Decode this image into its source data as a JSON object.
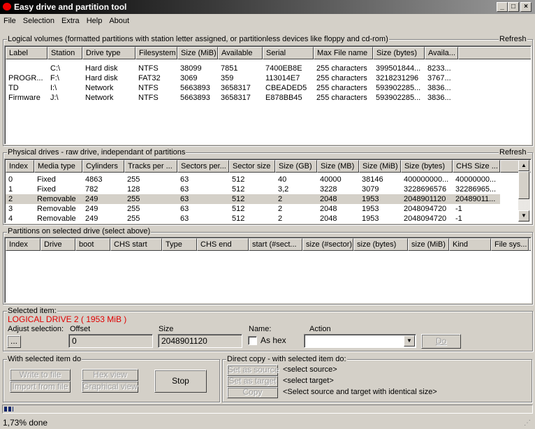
{
  "window": {
    "title": "Easy drive and partition tool",
    "min": "_",
    "max": "□",
    "close": "×"
  },
  "menu": [
    "File",
    "Selection",
    "Extra",
    "Help",
    "About"
  ],
  "logical": {
    "title": "Logical volumes (formatted partitions with station letter assigned, or partitionless devices like floppy and cd-rom)",
    "refresh": "Refresh",
    "columns": [
      "Label",
      "Station",
      "Drive type",
      "Filesystem",
      "Size (MiB)",
      "Available",
      "Serial",
      "Max File name",
      "Size (bytes)",
      "Availa..."
    ],
    "rows": [
      [
        "",
        "C:\\",
        "Hard disk",
        "NTFS",
        "38099",
        "7851",
        "7400EB8E",
        "255 characters",
        "399501844...",
        "8233..."
      ],
      [
        "PROGR...",
        "F:\\",
        "Hard disk",
        "FAT32",
        "3069",
        "359",
        "113014E7",
        "255 characters",
        "3218231296",
        "3767..."
      ],
      [
        "TD",
        "I:\\",
        "Network",
        "NTFS",
        "5663893",
        "3658317",
        "CBEADED5",
        "255 characters",
        "593902285...",
        "3836..."
      ],
      [
        "Firmware",
        "J:\\",
        "Network",
        "NTFS",
        "5663893",
        "3658317",
        "E878BB45",
        "255 characters",
        "593902285...",
        "3836..."
      ]
    ]
  },
  "physical": {
    "title": "Physical drives - raw drive, independant of partitions",
    "refresh": "Refresh",
    "selected_row": 2,
    "columns": [
      "Index",
      "Media type",
      "Cylinders",
      "Tracks per ...",
      "Sectors per...",
      "Sector size",
      "Size (GB)",
      "Size (MB)",
      "Size (MiB)",
      "Size (bytes)",
      "CHS Size ..."
    ],
    "rows": [
      [
        "0",
        "Fixed",
        "4863",
        "255",
        "63",
        "512",
        "40",
        "40000",
        "38146",
        "400000000...",
        "40000000..."
      ],
      [
        "1",
        "Fixed",
        "782",
        "128",
        "63",
        "512",
        "3,2",
        "3228",
        "3079",
        "3228696576",
        "32286965..."
      ],
      [
        "2",
        "Removable",
        "249",
        "255",
        "63",
        "512",
        "2",
        "2048",
        "1953",
        "2048901120",
        "20489011..."
      ],
      [
        "3",
        "Removable",
        "249",
        "255",
        "63",
        "512",
        "2",
        "2048",
        "1953",
        "2048094720",
        "-1"
      ],
      [
        "4",
        "Removable",
        "249",
        "255",
        "63",
        "512",
        "2",
        "2048",
        "1953",
        "2048094720",
        "-1"
      ]
    ]
  },
  "partitions": {
    "title": "Partitions on selected drive (select above)",
    "columns": [
      "Index",
      "Drive",
      "boot",
      "CHS start",
      "Type",
      "CHS end",
      "start (#sect...",
      "size (#sector)",
      "size (bytes)",
      "size (MiB)",
      "Kind",
      "File sys..."
    ]
  },
  "selected": {
    "title": "Selected item:",
    "item": "LOGICAL DRIVE 2  ( 1953 MiB )",
    "item_color": "#e00000",
    "adjust_label": "Adjust selection:",
    "adjust_btn": "...",
    "offset_label": "Offset",
    "offset": "0",
    "size_label": "Size",
    "size": "2048901120",
    "name_label": "Name:",
    "as_hex": "As hex",
    "as_hex_checked": false,
    "action_label": "Action",
    "action_value": "",
    "do": "Do"
  },
  "with_item": {
    "title": "With selected item do",
    "write": "Write to file",
    "import": "Import from file",
    "hex": "Hex view",
    "graph": "Graphical view",
    "stop": "Stop"
  },
  "direct": {
    "title": "Direct copy - with selected item do:",
    "set_source": "Set as source",
    "set_target": "Set as target",
    "copy": "Copy",
    "source_text": "<select source>",
    "target_text": "<select target>",
    "copy_text": "<Select source and target with identical size>"
  },
  "progress": {
    "percent": 1.73,
    "color": "#0a246a"
  },
  "status": "1,73% done"
}
